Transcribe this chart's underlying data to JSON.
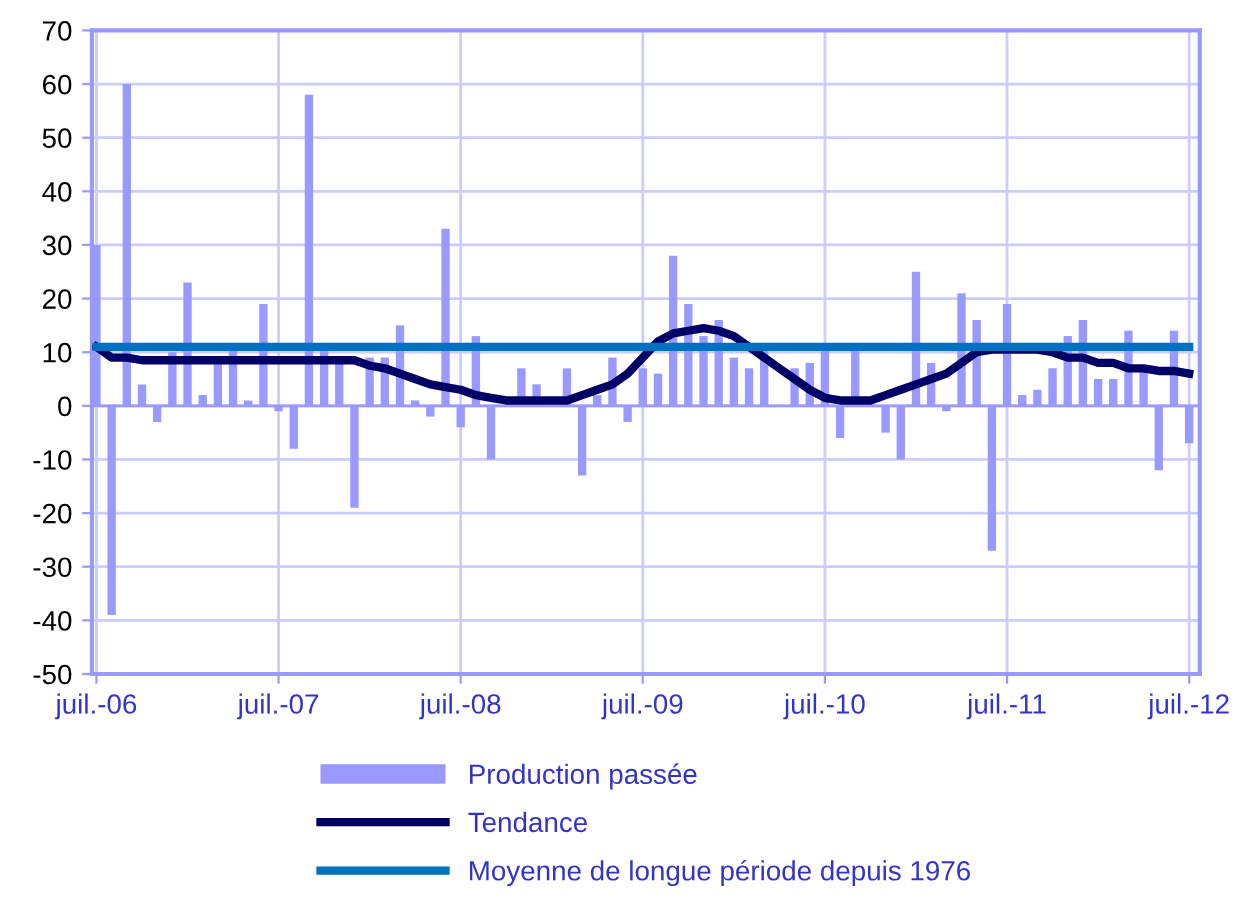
{
  "chart_data": {
    "type": "bar",
    "categories": [
      "juil.-06",
      null,
      null,
      null,
      null,
      null,
      null,
      null,
      null,
      null,
      null,
      null,
      "juil.-07",
      null,
      null,
      null,
      null,
      null,
      null,
      null,
      null,
      null,
      null,
      null,
      "juil.-08",
      null,
      null,
      null,
      null,
      null,
      null,
      null,
      null,
      null,
      null,
      null,
      "juil.-09",
      null,
      null,
      null,
      null,
      null,
      null,
      null,
      null,
      null,
      null,
      null,
      "juil.-10",
      null,
      null,
      null,
      null,
      null,
      null,
      null,
      null,
      null,
      null,
      null,
      "juil.-11",
      null,
      null,
      null,
      null,
      null,
      null,
      null,
      null,
      null,
      null,
      null,
      "juil.-12"
    ],
    "series": [
      {
        "name": "Production passée",
        "color": "#9999ff",
        "values": [
          30,
          -39,
          60,
          4,
          -3,
          10,
          23,
          2,
          8,
          11,
          1,
          19,
          -1,
          -8,
          58,
          11,
          9,
          -19,
          9,
          9,
          15,
          1,
          -2,
          33,
          -4,
          13,
          -10,
          0,
          7,
          4,
          0,
          7,
          -13,
          2,
          9,
          -3,
          7,
          6,
          28,
          19,
          13,
          16,
          9,
          7,
          11,
          0,
          7,
          8,
          11,
          -6,
          11,
          0,
          -5,
          -10,
          25,
          8,
          -1,
          21,
          16,
          -27,
          19,
          2,
          3,
          7,
          13,
          16,
          5,
          5,
          14,
          7,
          -12,
          14,
          -7
        ]
      },
      {
        "name": "Tendance",
        "type": "line",
        "color": "#000066",
        "values": [
          11,
          9,
          9,
          8.5,
          8.5,
          8.5,
          8.5,
          8.5,
          8.5,
          8.5,
          8.5,
          8.5,
          8.5,
          8.5,
          8.5,
          8.5,
          8.5,
          8.5,
          7.5,
          7,
          6,
          5,
          4,
          3.5,
          3,
          2,
          1.5,
          1,
          1,
          1,
          1,
          1,
          2,
          3,
          4,
          6,
          9,
          12,
          13.5,
          14,
          14.5,
          14,
          13,
          11,
          9,
          7,
          5,
          3,
          1.5,
          1,
          1,
          1,
          2,
          3,
          4,
          5,
          6,
          8,
          10,
          10.5,
          10.5,
          10.5,
          10.5,
          10,
          9,
          9,
          8,
          8,
          7,
          7,
          6.5,
          6.5,
          6
        ]
      },
      {
        "name": "Moyenne de longue période depuis 1976",
        "type": "line",
        "color": "#0070c0",
        "values": [
          11,
          11,
          11,
          11,
          11,
          11,
          11,
          11,
          11,
          11,
          11,
          11,
          11,
          11,
          11,
          11,
          11,
          11,
          11,
          11,
          11,
          11,
          11,
          11,
          11,
          11,
          11,
          11,
          11,
          11,
          11,
          11,
          11,
          11,
          11,
          11,
          11,
          11,
          11,
          11,
          11,
          11,
          11,
          11,
          11,
          11,
          11,
          11,
          11,
          11,
          11,
          11,
          11,
          11,
          11,
          11,
          11,
          11,
          11,
          11,
          11,
          11,
          11,
          11,
          11,
          11,
          11,
          11,
          11,
          11,
          11,
          11,
          11
        ]
      }
    ],
    "ylim": [
      -50,
      70
    ],
    "yticks": [
      -50,
      -40,
      -30,
      -20,
      -10,
      0,
      10,
      20,
      30,
      40,
      50,
      60,
      70
    ],
    "ref_lines": [
      {
        "axis": "y",
        "value": 0,
        "color": "#9999ff"
      }
    ],
    "grid": true,
    "legend": "bottom"
  }
}
